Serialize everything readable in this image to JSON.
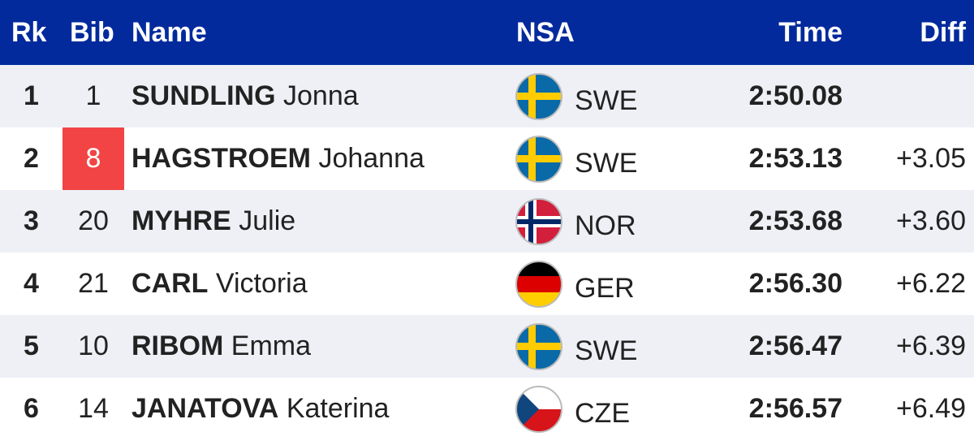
{
  "header": {
    "rk": "Rk",
    "bib": "Bib",
    "name": "Name",
    "nsa": "NSA",
    "time": "Time",
    "diff": "Diff"
  },
  "rows": [
    {
      "rank": 1,
      "bib": 1,
      "surname": "SUNDLING",
      "firstname": "Jonna",
      "nsa": "SWE",
      "time": "2:50.08"
    },
    {
      "rank": 2,
      "bib": 8,
      "surname": "HAGSTROEM",
      "firstname": "Johanna",
      "nsa": "SWE",
      "time": "2:53.13",
      "diff": "+3.05"
    },
    {
      "rank": 3,
      "bib": 20,
      "surname": "MYHRE",
      "firstname": "Julie",
      "nsa": "NOR",
      "time": "2:53.68",
      "diff": "+3.60"
    },
    {
      "rank": 4,
      "bib": 21,
      "surname": "CARL",
      "firstname": "Victoria",
      "nsa": "GER",
      "time": "2:56.30",
      "diff": "+6.22"
    },
    {
      "rank": 5,
      "bib": 10,
      "surname": "RIBOM",
      "firstname": "Emma",
      "nsa": "SWE",
      "time": "2:56.47",
      "diff": "+6.39"
    },
    {
      "rank": 6,
      "bib": 14,
      "surname": "JANATOVA",
      "firstname": "Katerina",
      "nsa": "CZE",
      "time": "2:56.57",
      "diff": "+6.49"
    }
  ]
}
